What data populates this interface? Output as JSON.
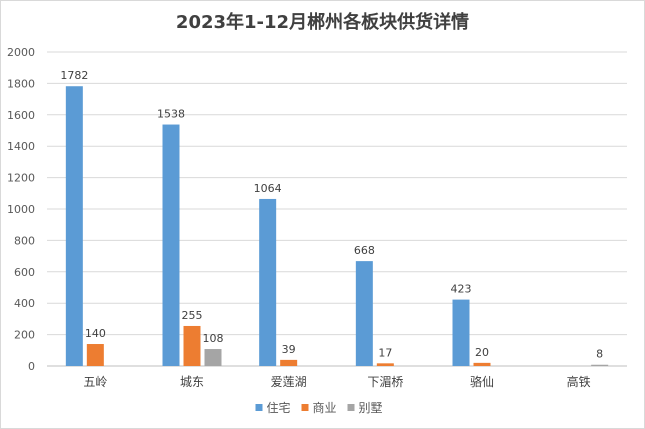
{
  "chart_data": {
    "type": "bar",
    "title": "2023年1-12月郴州各板块供货详情",
    "xlabel": "",
    "ylabel": "",
    "ylim": [
      0,
      2000
    ],
    "yticks": [
      0,
      200,
      400,
      600,
      800,
      1000,
      1200,
      1400,
      1600,
      1800,
      2000
    ],
    "grid": true,
    "legend_position": "bottom",
    "categories": [
      "五岭",
      "城东",
      "爱莲湖",
      "下湄桥",
      "骆仙",
      "高铁"
    ],
    "series": [
      {
        "name": "住宅",
        "color": "#5b9bd5",
        "values": [
          1782,
          1538,
          1064,
          668,
          423,
          null
        ]
      },
      {
        "name": "商业",
        "color": "#ed7d31",
        "values": [
          140,
          255,
          39,
          17,
          20,
          null
        ]
      },
      {
        "name": "别墅",
        "color": "#a5a5a5",
        "values": [
          null,
          108,
          null,
          null,
          null,
          8
        ]
      }
    ]
  }
}
